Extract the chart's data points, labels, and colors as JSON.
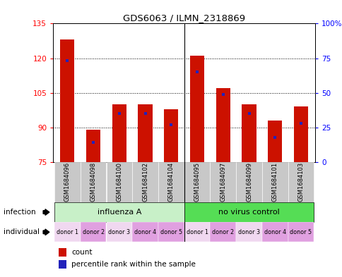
{
  "title": "GDS6063 / ILMN_2318869",
  "samples": [
    "GSM1684096",
    "GSM1684098",
    "GSM1684100",
    "GSM1684102",
    "GSM1684104",
    "GSM1684095",
    "GSM1684097",
    "GSM1684099",
    "GSM1684101",
    "GSM1684103"
  ],
  "counts": [
    128,
    89,
    100,
    100,
    98,
    121,
    107,
    100,
    93,
    99
  ],
  "percentile_ranks": [
    73,
    14,
    35,
    35,
    27,
    65,
    49,
    35,
    18,
    28
  ],
  "ylim_left": [
    75,
    135
  ],
  "ylim_right": [
    0,
    100
  ],
  "yticks_left": [
    75,
    90,
    105,
    120,
    135
  ],
  "yticks_right": [
    0,
    25,
    50,
    75,
    100
  ],
  "infection_groups": [
    {
      "label": "influenza A",
      "start": 0,
      "end": 5,
      "color": "#c8f0c8"
    },
    {
      "label": "no virus control",
      "start": 5,
      "end": 10,
      "color": "#55dd55"
    }
  ],
  "individual_labels": [
    "donor 1",
    "donor 2",
    "donor 3",
    "donor 4",
    "donor 5",
    "donor 1",
    "donor 2",
    "donor 3",
    "donor 4",
    "donor 5"
  ],
  "indiv_colors": [
    "#f0d8f0",
    "#e0a0e0",
    "#f0d8f0",
    "#e0a0e0",
    "#e0a0e0",
    "#f0d8f0",
    "#e0a0e0",
    "#f0d8f0",
    "#e0a0e0",
    "#e0a0e0"
  ],
  "bar_color": "#cc1100",
  "blue_color": "#2222bb",
  "sample_bg_color": "#c8c8c8",
  "bar_width": 0.55,
  "baseline": 75,
  "legend_items": [
    "count",
    "percentile rank within the sample"
  ]
}
